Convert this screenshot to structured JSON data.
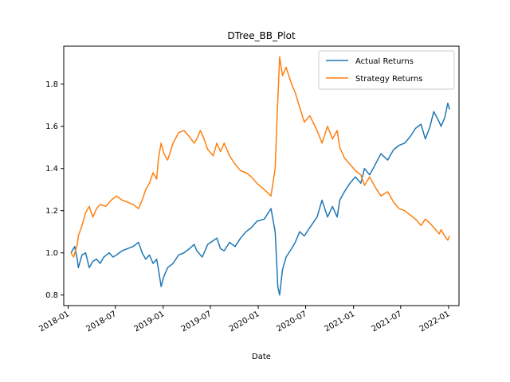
{
  "chart_data": {
    "type": "line",
    "title": "DTree_BB_Plot",
    "xlabel": "Date",
    "ylabel": "",
    "xlim": [
      "2017-12-15",
      "2022-02-10"
    ],
    "ylim": [
      0.75,
      1.98
    ],
    "x_ticks": [
      "2018-01",
      "2018-07",
      "2019-01",
      "2019-07",
      "2020-01",
      "2020-07",
      "2021-01",
      "2021-07",
      "2022-01"
    ],
    "y_ticks": [
      0.8,
      1.0,
      1.2,
      1.4,
      1.6,
      1.8
    ],
    "y_tick_labels": [
      "0.8",
      "1.0",
      "1.2",
      "1.4",
      "1.6",
      "1.8"
    ],
    "grid": false,
    "legend_position": "top-right",
    "series": [
      {
        "name": "Actual Returns",
        "color": "#1f77b4",
        "points": [
          [
            "2018-01-12",
            1.0
          ],
          [
            "2018-01-26",
            1.03
          ],
          [
            "2018-02-05",
            0.97
          ],
          [
            "2018-02-09",
            0.93
          ],
          [
            "2018-02-23",
            0.99
          ],
          [
            "2018-03-09",
            1.0
          ],
          [
            "2018-03-23",
            0.93
          ],
          [
            "2018-04-06",
            0.96
          ],
          [
            "2018-04-20",
            0.97
          ],
          [
            "2018-05-04",
            0.95
          ],
          [
            "2018-05-18",
            0.98
          ],
          [
            "2018-06-08",
            1.0
          ],
          [
            "2018-06-22",
            0.98
          ],
          [
            "2018-07-06",
            0.99
          ],
          [
            "2018-07-27",
            1.01
          ],
          [
            "2018-08-17",
            1.02
          ],
          [
            "2018-09-07",
            1.03
          ],
          [
            "2018-09-28",
            1.05
          ],
          [
            "2018-10-12",
            1.0
          ],
          [
            "2018-10-26",
            0.97
          ],
          [
            "2018-11-09",
            0.99
          ],
          [
            "2018-11-23",
            0.95
          ],
          [
            "2018-12-07",
            0.97
          ],
          [
            "2018-12-14",
            0.92
          ],
          [
            "2018-12-24",
            0.84
          ],
          [
            "2019-01-04",
            0.89
          ],
          [
            "2019-01-18",
            0.93
          ],
          [
            "2019-02-08",
            0.95
          ],
          [
            "2019-03-01",
            0.99
          ],
          [
            "2019-03-22",
            1.0
          ],
          [
            "2019-04-12",
            1.02
          ],
          [
            "2019-04-30",
            1.04
          ],
          [
            "2019-05-10",
            1.01
          ],
          [
            "2019-05-31",
            0.98
          ],
          [
            "2019-06-21",
            1.04
          ],
          [
            "2019-07-26",
            1.07
          ],
          [
            "2019-08-09",
            1.02
          ],
          [
            "2019-08-23",
            1.01
          ],
          [
            "2019-09-13",
            1.05
          ],
          [
            "2019-10-04",
            1.03
          ],
          [
            "2019-10-25",
            1.07
          ],
          [
            "2019-11-15",
            1.1
          ],
          [
            "2019-12-06",
            1.12
          ],
          [
            "2019-12-27",
            1.15
          ],
          [
            "2020-01-24",
            1.16
          ],
          [
            "2020-02-19",
            1.21
          ],
          [
            "2020-03-06",
            1.1
          ],
          [
            "2020-03-12",
            0.95
          ],
          [
            "2020-03-16",
            0.84
          ],
          [
            "2020-03-23",
            0.8
          ],
          [
            "2020-04-03",
            0.92
          ],
          [
            "2020-04-17",
            0.98
          ],
          [
            "2020-05-08",
            1.02
          ],
          [
            "2020-05-22",
            1.05
          ],
          [
            "2020-06-08",
            1.1
          ],
          [
            "2020-06-26",
            1.08
          ],
          [
            "2020-07-17",
            1.12
          ],
          [
            "2020-08-14",
            1.17
          ],
          [
            "2020-09-02",
            1.25
          ],
          [
            "2020-09-23",
            1.17
          ],
          [
            "2020-10-12",
            1.22
          ],
          [
            "2020-10-30",
            1.17
          ],
          [
            "2020-11-09",
            1.25
          ],
          [
            "2020-11-27",
            1.29
          ],
          [
            "2020-12-18",
            1.33
          ],
          [
            "2021-01-08",
            1.36
          ],
          [
            "2021-01-29",
            1.33
          ],
          [
            "2021-02-12",
            1.4
          ],
          [
            "2021-03-04",
            1.37
          ],
          [
            "2021-03-26",
            1.42
          ],
          [
            "2021-04-16",
            1.47
          ],
          [
            "2021-05-12",
            1.44
          ],
          [
            "2021-06-04",
            1.49
          ],
          [
            "2021-06-25",
            1.51
          ],
          [
            "2021-07-16",
            1.52
          ],
          [
            "2021-08-06",
            1.55
          ],
          [
            "2021-08-27",
            1.59
          ],
          [
            "2021-09-17",
            1.61
          ],
          [
            "2021-10-04",
            1.54
          ],
          [
            "2021-10-22",
            1.6
          ],
          [
            "2021-11-05",
            1.67
          ],
          [
            "2021-11-26",
            1.62
          ],
          [
            "2021-12-03",
            1.6
          ],
          [
            "2021-12-17",
            1.64
          ],
          [
            "2021-12-29",
            1.71
          ],
          [
            "2022-01-05",
            1.68
          ]
        ]
      },
      {
        "name": "Strategy Returns",
        "color": "#ff7f0e",
        "points": [
          [
            "2018-01-12",
            1.0
          ],
          [
            "2018-01-22",
            0.98
          ],
          [
            "2018-02-05",
            1.04
          ],
          [
            "2018-02-09",
            1.08
          ],
          [
            "2018-02-23",
            1.13
          ],
          [
            "2018-03-09",
            1.19
          ],
          [
            "2018-03-23",
            1.22
          ],
          [
            "2018-04-06",
            1.17
          ],
          [
            "2018-04-20",
            1.21
          ],
          [
            "2018-05-04",
            1.23
          ],
          [
            "2018-05-25",
            1.22
          ],
          [
            "2018-06-15",
            1.25
          ],
          [
            "2018-07-06",
            1.27
          ],
          [
            "2018-07-27",
            1.25
          ],
          [
            "2018-08-17",
            1.24
          ],
          [
            "2018-09-07",
            1.23
          ],
          [
            "2018-09-28",
            1.21
          ],
          [
            "2018-10-12",
            1.25
          ],
          [
            "2018-10-26",
            1.3
          ],
          [
            "2018-11-09",
            1.33
          ],
          [
            "2018-11-23",
            1.38
          ],
          [
            "2018-12-07",
            1.35
          ],
          [
            "2018-12-14",
            1.45
          ],
          [
            "2018-12-24",
            1.52
          ],
          [
            "2019-01-04",
            1.47
          ],
          [
            "2019-01-18",
            1.44
          ],
          [
            "2019-02-08",
            1.52
          ],
          [
            "2019-03-01",
            1.57
          ],
          [
            "2019-03-22",
            1.58
          ],
          [
            "2019-04-12",
            1.55
          ],
          [
            "2019-04-30",
            1.52
          ],
          [
            "2019-05-10",
            1.54
          ],
          [
            "2019-05-24",
            1.58
          ],
          [
            "2019-06-07",
            1.54
          ],
          [
            "2019-06-21",
            1.49
          ],
          [
            "2019-07-12",
            1.46
          ],
          [
            "2019-07-26",
            1.52
          ],
          [
            "2019-08-09",
            1.48
          ],
          [
            "2019-08-23",
            1.52
          ],
          [
            "2019-09-13",
            1.46
          ],
          [
            "2019-10-04",
            1.42
          ],
          [
            "2019-10-25",
            1.39
          ],
          [
            "2019-11-15",
            1.38
          ],
          [
            "2019-12-06",
            1.36
          ],
          [
            "2019-12-27",
            1.33
          ],
          [
            "2020-01-24",
            1.3
          ],
          [
            "2020-02-19",
            1.27
          ],
          [
            "2020-03-06",
            1.4
          ],
          [
            "2020-03-12",
            1.6
          ],
          [
            "2020-03-16",
            1.72
          ],
          [
            "2020-03-23",
            1.93
          ],
          [
            "2020-04-03",
            1.84
          ],
          [
            "2020-04-17",
            1.88
          ],
          [
            "2020-05-08",
            1.8
          ],
          [
            "2020-05-22",
            1.76
          ],
          [
            "2020-06-08",
            1.69
          ],
          [
            "2020-06-26",
            1.62
          ],
          [
            "2020-07-17",
            1.65
          ],
          [
            "2020-08-14",
            1.58
          ],
          [
            "2020-09-02",
            1.52
          ],
          [
            "2020-09-23",
            1.6
          ],
          [
            "2020-10-12",
            1.54
          ],
          [
            "2020-10-30",
            1.58
          ],
          [
            "2020-11-09",
            1.5
          ],
          [
            "2020-11-27",
            1.45
          ],
          [
            "2020-12-18",
            1.42
          ],
          [
            "2021-01-08",
            1.39
          ],
          [
            "2021-01-29",
            1.37
          ],
          [
            "2021-02-12",
            1.32
          ],
          [
            "2021-03-04",
            1.36
          ],
          [
            "2021-03-26",
            1.31
          ],
          [
            "2021-04-16",
            1.27
          ],
          [
            "2021-05-12",
            1.29
          ],
          [
            "2021-06-04",
            1.24
          ],
          [
            "2021-06-25",
            1.21
          ],
          [
            "2021-07-16",
            1.2
          ],
          [
            "2021-08-06",
            1.18
          ],
          [
            "2021-08-27",
            1.16
          ],
          [
            "2021-09-17",
            1.13
          ],
          [
            "2021-10-04",
            1.16
          ],
          [
            "2021-10-22",
            1.14
          ],
          [
            "2021-11-05",
            1.12
          ],
          [
            "2021-11-26",
            1.09
          ],
          [
            "2021-12-03",
            1.11
          ],
          [
            "2021-12-17",
            1.08
          ],
          [
            "2021-12-29",
            1.06
          ],
          [
            "2022-01-05",
            1.08
          ]
        ]
      }
    ]
  }
}
